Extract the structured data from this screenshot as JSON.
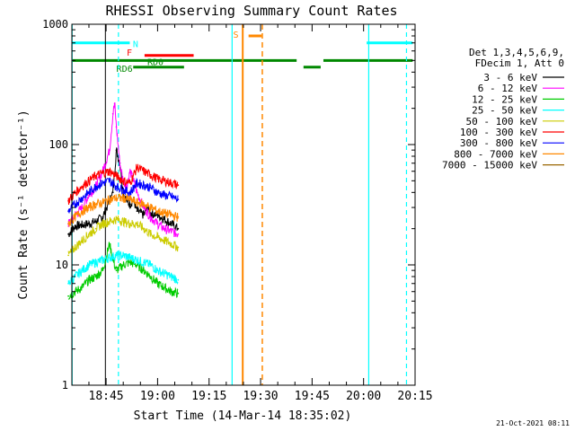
{
  "chart_data": {
    "type": "line",
    "title": "RHESSI Observing Summary Count Rates",
    "xlabel": "Start Time (14-Mar-14 18:35:02)",
    "ylabel": "Count Rate (s⁻¹ detector⁻¹)",
    "y_scale": "log",
    "ylim": [
      1,
      1000
    ],
    "xlim": [
      "18:35:02",
      "20:15"
    ],
    "x_ticks": [
      "18:45",
      "19:00",
      "19:15",
      "19:30",
      "19:45",
      "20:00",
      "20:15"
    ],
    "y_ticks": [
      "1",
      "10",
      "100",
      "1000"
    ],
    "x_tick_minutes": [
      45,
      60,
      75,
      90,
      105,
      120,
      135
    ],
    "footer": "21-Oct-2021 08:11",
    "legend_header": [
      "Det 1,3,4,5,6,9,",
      "FDecim 1, Att 0"
    ],
    "series": [
      {
        "name": "3 - 6 keV",
        "color": "#000000",
        "points": [
          [
            34,
            18
          ],
          [
            36,
            21
          ],
          [
            40,
            22
          ],
          [
            42,
            23
          ],
          [
            44,
            25
          ],
          [
            47,
            40
          ],
          [
            48,
            90
          ],
          [
            49,
            70
          ],
          [
            50,
            40
          ],
          [
            51,
            34
          ],
          [
            52,
            32
          ],
          [
            53,
            35
          ],
          [
            54,
            28
          ],
          [
            56,
            26
          ],
          [
            57,
            30
          ],
          [
            58,
            27
          ],
          [
            60,
            26
          ],
          [
            62,
            24
          ],
          [
            64,
            22
          ],
          [
            66,
            20
          ]
        ]
      },
      {
        "name": "6 - 12 keV",
        "color": "#ff00ff",
        "points": [
          [
            34,
            22
          ],
          [
            36,
            26
          ],
          [
            38,
            30
          ],
          [
            40,
            38
          ],
          [
            42,
            45
          ],
          [
            44,
            60
          ],
          [
            46,
            90
          ],
          [
            47,
            180
          ],
          [
            47.5,
            220
          ],
          [
            48,
            140
          ],
          [
            49,
            70
          ],
          [
            50,
            50
          ],
          [
            51,
            45
          ],
          [
            52,
            60
          ],
          [
            53,
            50
          ],
          [
            54,
            40
          ],
          [
            56,
            30
          ],
          [
            58,
            25
          ],
          [
            60,
            22
          ],
          [
            62,
            20
          ],
          [
            64,
            19
          ],
          [
            66,
            18
          ]
        ]
      },
      {
        "name": "12 - 25 keV",
        "color": "#00cc00",
        "points": [
          [
            34,
            5.5
          ],
          [
            36,
            6
          ],
          [
            38,
            6.5
          ],
          [
            40,
            7.5
          ],
          [
            42,
            8
          ],
          [
            44,
            9
          ],
          [
            46,
            15
          ],
          [
            47,
            11
          ],
          [
            48,
            9
          ],
          [
            50,
            10
          ],
          [
            52,
            10.5
          ],
          [
            54,
            10
          ],
          [
            56,
            9
          ],
          [
            58,
            8
          ],
          [
            60,
            7
          ],
          [
            62,
            6.5
          ],
          [
            64,
            6
          ],
          [
            66,
            5.8
          ]
        ]
      },
      {
        "name": "25 - 50 keV",
        "color": "#00ffff",
        "points": [
          [
            34,
            7
          ],
          [
            36,
            8
          ],
          [
            38,
            9
          ],
          [
            40,
            10
          ],
          [
            42,
            10.5
          ],
          [
            44,
            11
          ],
          [
            46,
            11.5
          ],
          [
            48,
            12
          ],
          [
            50,
            12
          ],
          [
            52,
            11.5
          ],
          [
            54,
            11
          ],
          [
            56,
            10.5
          ],
          [
            58,
            10
          ],
          [
            60,
            9
          ],
          [
            62,
            8.5
          ],
          [
            64,
            8
          ],
          [
            66,
            7.5
          ]
        ]
      },
      {
        "name": "50 - 100 keV",
        "color": "#cccc00",
        "points": [
          [
            34,
            12
          ],
          [
            36,
            14
          ],
          [
            38,
            16
          ],
          [
            40,
            18
          ],
          [
            42,
            20
          ],
          [
            44,
            22
          ],
          [
            46,
            23
          ],
          [
            48,
            24
          ],
          [
            50,
            23
          ],
          [
            52,
            22
          ],
          [
            54,
            22
          ],
          [
            56,
            20
          ],
          [
            58,
            18
          ],
          [
            60,
            17
          ],
          [
            62,
            16
          ],
          [
            64,
            15
          ],
          [
            66,
            14
          ]
        ]
      },
      {
        "name": "100 - 300 keV",
        "color": "#ff0000",
        "points": [
          [
            34,
            34
          ],
          [
            36,
            40
          ],
          [
            38,
            45
          ],
          [
            40,
            50
          ],
          [
            42,
            55
          ],
          [
            44,
            58
          ],
          [
            46,
            60
          ],
          [
            48,
            55
          ],
          [
            50,
            50
          ],
          [
            52,
            48
          ],
          [
            54,
            65
          ],
          [
            56,
            60
          ],
          [
            58,
            56
          ],
          [
            60,
            52
          ],
          [
            62,
            50
          ],
          [
            64,
            48
          ],
          [
            66,
            46
          ]
        ]
      },
      {
        "name": "300 - 800 keV",
        "color": "#0000ff",
        "points": [
          [
            34,
            28
          ],
          [
            36,
            32
          ],
          [
            38,
            36
          ],
          [
            40,
            40
          ],
          [
            42,
            45
          ],
          [
            44,
            48
          ],
          [
            46,
            50
          ],
          [
            48,
            45
          ],
          [
            50,
            42
          ],
          [
            52,
            40
          ],
          [
            54,
            48
          ],
          [
            56,
            46
          ],
          [
            58,
            44
          ],
          [
            60,
            40
          ],
          [
            62,
            38
          ],
          [
            64,
            37
          ],
          [
            66,
            35
          ]
        ]
      },
      {
        "name": "800 - 7000 keV",
        "color": "#ff8800",
        "points": [
          [
            34,
            22
          ],
          [
            36,
            25
          ],
          [
            38,
            28
          ],
          [
            40,
            30
          ],
          [
            42,
            32
          ],
          [
            44,
            33
          ],
          [
            46,
            35
          ],
          [
            48,
            36
          ],
          [
            50,
            36
          ],
          [
            52,
            35
          ],
          [
            54,
            33
          ],
          [
            56,
            32
          ],
          [
            58,
            30
          ],
          [
            60,
            28
          ],
          [
            62,
            27
          ],
          [
            64,
            26
          ],
          [
            66,
            25
          ]
        ]
      },
      {
        "name": "7000 - 15000 keV",
        "color": "#996600",
        "points": []
      }
    ],
    "markers": [
      {
        "label": "N",
        "color": "#00ffff",
        "y_level": 700
      },
      {
        "label": "F",
        "color": "#ff0000",
        "y_level": 550
      },
      {
        "label": "S",
        "color": "#ff8800",
        "y_level": 800
      },
      {
        "label": "RD0",
        "color": "#008800",
        "y_level": 500
      },
      {
        "label": "RD6",
        "color": "#008800",
        "y_level": 440
      }
    ],
    "grid": false,
    "legend_position": "right"
  }
}
